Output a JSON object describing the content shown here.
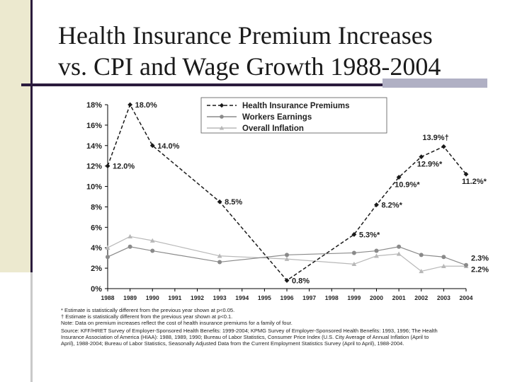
{
  "slide": {
    "title_line1": "Health Insurance Premium Increases",
    "title_line2": "vs. CPI and Wage Growth 1988-2004"
  },
  "colors": {
    "premiums": "#1a1a1a",
    "earnings": "#8a8a8a",
    "inflation": "#b8b8b8",
    "title_rule": "#2b1b3d",
    "accent_rule": "#b0b0c4"
  },
  "chart_data": {
    "type": "line",
    "x_ticks": [
      "1988",
      "1989",
      "1990",
      "1991",
      "1992",
      "1993",
      "1994",
      "1995",
      "1996",
      "1997",
      "1998",
      "1999",
      "2000",
      "2001",
      "2002",
      "2003",
      "2004"
    ],
    "y_ticks": [
      "0%",
      "2%",
      "4%",
      "6%",
      "8%",
      "10%",
      "12%",
      "14%",
      "16%",
      "18%"
    ],
    "ylim": [
      0,
      18
    ],
    "legend_position": "top-right",
    "grid": false,
    "series": [
      {
        "name": "Health Insurance Premiums",
        "marker": "diamond",
        "points": [
          [
            1988,
            12.0
          ],
          [
            1989,
            18.0
          ],
          [
            1990,
            14.0
          ],
          [
            1993,
            8.5
          ],
          [
            1996,
            0.8
          ],
          [
            1999,
            5.3
          ],
          [
            2000,
            8.2
          ],
          [
            2001,
            10.9
          ],
          [
            2002,
            12.9
          ],
          [
            2003,
            13.9
          ],
          [
            2004,
            11.2
          ]
        ]
      },
      {
        "name": "Workers Earnings",
        "marker": "circle",
        "points": [
          [
            1988,
            3.1
          ],
          [
            1989,
            4.1
          ],
          [
            1990,
            3.7
          ],
          [
            1993,
            2.6
          ],
          [
            1996,
            3.3
          ],
          [
            1999,
            3.5
          ],
          [
            2000,
            3.7
          ],
          [
            2001,
            4.1
          ],
          [
            2002,
            3.3
          ],
          [
            2003,
            3.1
          ],
          [
            2004,
            2.3
          ]
        ]
      },
      {
        "name": "Overall Inflation",
        "marker": "triangle",
        "points": [
          [
            1988,
            4.0
          ],
          [
            1989,
            5.1
          ],
          [
            1990,
            4.7
          ],
          [
            1993,
            3.2
          ],
          [
            1996,
            2.9
          ],
          [
            1999,
            2.4
          ],
          [
            2000,
            3.2
          ],
          [
            2001,
            3.4
          ],
          [
            2002,
            1.7
          ],
          [
            2003,
            2.2
          ],
          [
            2004,
            2.2
          ]
        ]
      }
    ],
    "data_labels": [
      {
        "x": 1988,
        "y": 12.0,
        "text": "12.0%",
        "pos": "right"
      },
      {
        "x": 1989,
        "y": 18.0,
        "text": "18.0%",
        "pos": "right"
      },
      {
        "x": 1990,
        "y": 14.0,
        "text": "14.0%",
        "pos": "right"
      },
      {
        "x": 1993,
        "y": 8.5,
        "text": "8.5%",
        "pos": "right"
      },
      {
        "x": 1996,
        "y": 0.8,
        "text": "0.8%",
        "pos": "right"
      },
      {
        "x": 1999,
        "y": 5.3,
        "text": "5.3%*",
        "pos": "right"
      },
      {
        "x": 2000,
        "y": 8.2,
        "text": "8.2%*",
        "pos": "right"
      },
      {
        "x": 2001,
        "y": 10.9,
        "text": "10.9%*",
        "pos": "below"
      },
      {
        "x": 2002,
        "y": 12.9,
        "text": "12.9%*",
        "pos": "below"
      },
      {
        "x": 2003,
        "y": 13.9,
        "text": "13.9%†",
        "pos": "above"
      },
      {
        "x": 2004,
        "y": 11.2,
        "text": "11.2%*",
        "pos": "below"
      },
      {
        "x": 2004,
        "y": 3.0,
        "text": "2.3%",
        "pos": "right"
      },
      {
        "x": 2004,
        "y": 1.9,
        "text": "2.2%",
        "pos": "right"
      }
    ]
  },
  "notes": [
    "* Estimate is statistically different from the previous year shown at p<0.05.",
    "† Estimate is statistically different from the previous year shown at p<0.1.",
    "Note:   Data on premium increases reflect the cost of health insurance premiums for a family of four.",
    "Source:  KFF/HRET Survey of Employer-Sponsored Health Benefits: 1999-2004; KPMG Survey of Employer-Sponsored Health Benefits: 1993, 1996; The Health",
    "Insurance Association of America (HIAA): 1988, 1989, 1990; Bureau of Labor Statistics, Consumer Price Index (U.S. City Average of Annual Inflation (April to",
    "April), 1988-2004; Bureau of Labor Statistics, Seasonally Adjusted Data from the Current Employment Statistics Survey (April to April), 1988-2004."
  ]
}
